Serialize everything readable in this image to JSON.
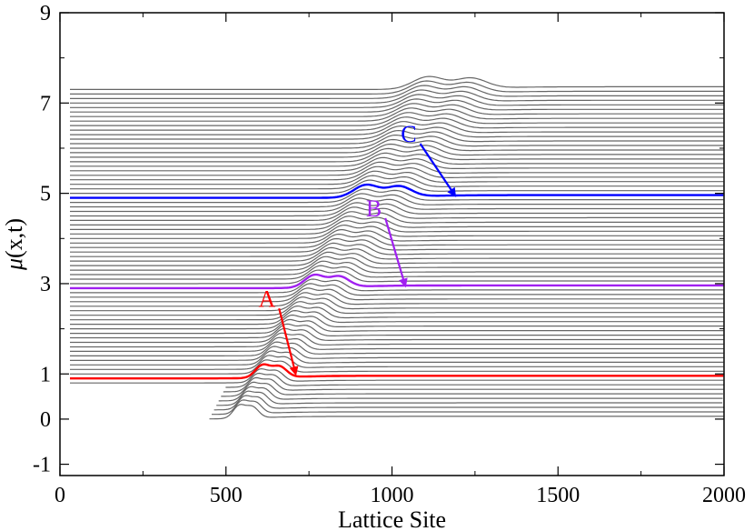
{
  "chart_data": {
    "type": "line",
    "title": "",
    "xlabel": "Lattice Site",
    "ylabel_prefix": "μ",
    "ylabel_args": "(x,t)",
    "xlim": [
      0,
      2000
    ],
    "ylim": [
      -1.25,
      9
    ],
    "x_ticks": [
      0,
      500,
      1000,
      1500,
      2000
    ],
    "y_ticks": [
      -1,
      0,
      1,
      3,
      5,
      7,
      9
    ],
    "x_tick_labels": [
      "0",
      "500",
      "1000",
      "1500",
      "2000"
    ],
    "y_tick_labels": [
      "-1",
      "0",
      "1",
      "3",
      "5",
      "7",
      "9"
    ],
    "grid": false,
    "waterfall": {
      "count": 74,
      "baseline_start": 0.0,
      "baseline_step": 0.1,
      "x_start": [
        30,
        0
      ],
      "initial_front_start": 450,
      "front_speed": 8.4,
      "bump_amplitude": 0.28,
      "plateau_after_front": 0.06,
      "pair_separation_rate": 0.6,
      "line_color": "#666666"
    },
    "highlighted_series": [
      {
        "name": "A",
        "label": "A",
        "curve_index": 9,
        "offset": 0.9,
        "color": "#ff0000",
        "arrow_from": [
          660,
          2.45
        ],
        "arrow_to": [
          710,
          1.0
        ]
      },
      {
        "name": "B",
        "label": "B",
        "curve_index": 29,
        "offset": 2.9,
        "color": "#a020f0",
        "arrow_from": [
          980,
          4.45
        ],
        "arrow_to": [
          1040,
          2.95
        ]
      },
      {
        "name": "C",
        "label": "C",
        "curve_index": 49,
        "offset": 4.9,
        "color": "#0000ff",
        "arrow_from": [
          1085,
          6.1
        ],
        "arrow_to": [
          1190,
          4.95
        ]
      }
    ]
  }
}
